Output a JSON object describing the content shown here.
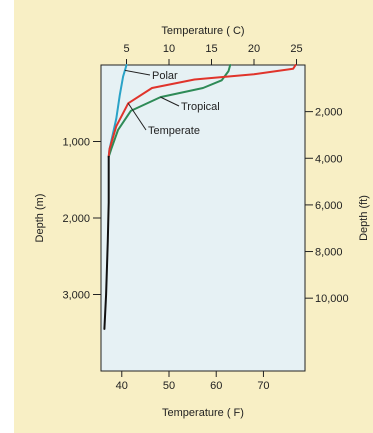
{
  "chart_data": {
    "type": "line",
    "title": "",
    "x_top_label": "Temperature ( C)",
    "x_bottom_label": "Temperature ( F)",
    "y_left_label": "Depth (m)",
    "y_right_label": "Depth (ft)",
    "x_top_ticks": [
      5,
      10,
      15,
      20,
      25
    ],
    "x_bottom_ticks": [
      40,
      50,
      60,
      70
    ],
    "y_left_ticks": [
      1000,
      2000,
      3000
    ],
    "y_right_ticks": [
      2000,
      4000,
      6000,
      8000,
      10000
    ],
    "y_left_tick_labels": [
      "1,000",
      "2,000",
      "3,000"
    ],
    "y_right_tick_labels": [
      "2,000",
      "4,000",
      "6,000",
      "8,000",
      "10,000"
    ],
    "xlim_c": [
      2,
      26
    ],
    "ylim_m": [
      0,
      4000
    ],
    "y_inverted": true,
    "grid": false,
    "series": [
      {
        "name": "Polar",
        "color": "#2aa3c7",
        "x": [
          5.0,
          4.6,
          4.2,
          3.8,
          3.4,
          3.0,
          2.9
        ],
        "y": [
          0,
          150,
          400,
          700,
          900,
          1100,
          1200
        ]
      },
      {
        "name": "Tropical",
        "color": "#2e8b57",
        "x": [
          17.2,
          17.0,
          16.2,
          14.0,
          9.0,
          5.5,
          4.0,
          3.2,
          2.9
        ],
        "y": [
          0,
          80,
          200,
          300,
          420,
          600,
          850,
          1100,
          1200
        ]
      },
      {
        "name": "Temperate",
        "color": "#e0342b",
        "x": [
          24.9,
          24.6,
          20.0,
          13.0,
          8.0,
          5.2,
          3.8,
          3.0,
          2.9
        ],
        "y": [
          0,
          50,
          120,
          190,
          300,
          500,
          800,
          1100,
          1200
        ]
      },
      {
        "name": "",
        "color": "#111111",
        "x": [
          2.9,
          2.9,
          2.8,
          2.6,
          2.4
        ],
        "y": [
          1200,
          1800,
          2300,
          3000,
          3450
        ]
      }
    ],
    "annotations": [
      "Polar",
      "Tropical",
      "Temperate"
    ]
  }
}
